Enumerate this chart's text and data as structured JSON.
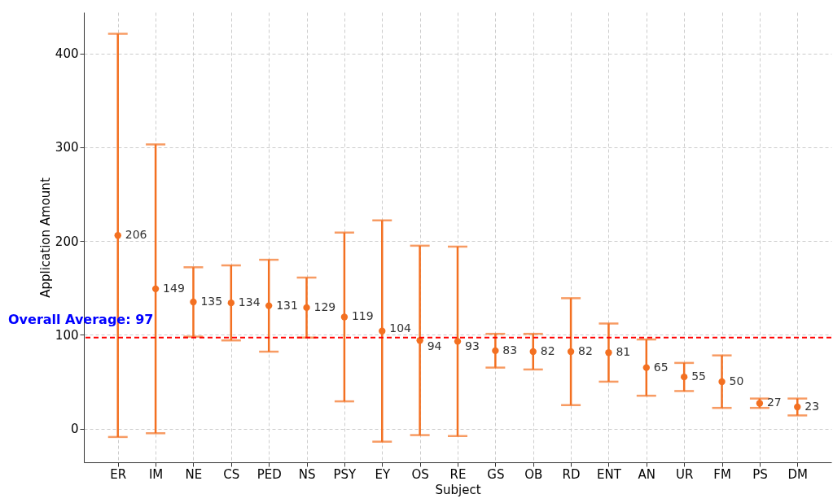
{
  "chart_data": {
    "type": "scatter",
    "xlabel": "Subject",
    "ylabel": "Application Amount",
    "categories": [
      "ER",
      "IM",
      "NE",
      "CS",
      "PED",
      "NS",
      "PSY",
      "EY",
      "OS",
      "RE",
      "GS",
      "OB",
      "RD",
      "ENT",
      "AN",
      "UR",
      "FM",
      "PS",
      "DM"
    ],
    "series": [
      {
        "color": "#f37021",
        "values": [
          206,
          149,
          135,
          134,
          131,
          129,
          119,
          104,
          94,
          93,
          83,
          82,
          82,
          81,
          65,
          55,
          50,
          27,
          23
        ],
        "errors": [
          215,
          154,
          37,
          40,
          49,
          32,
          90,
          118,
          101,
          101,
          18,
          19,
          57,
          31,
          30,
          15,
          28,
          5,
          9
        ]
      }
    ],
    "ylim": [
      -36,
      444
    ],
    "yticks": [
      0,
      100,
      200,
      300,
      400
    ],
    "ref_lines": [
      {
        "axis": "y",
        "value": 97,
        "label": "Overall Average: 97",
        "color": "#ff0000",
        "line_style": "dashed"
      }
    ],
    "data_labels": true,
    "marker": "circle",
    "grid": true
  }
}
